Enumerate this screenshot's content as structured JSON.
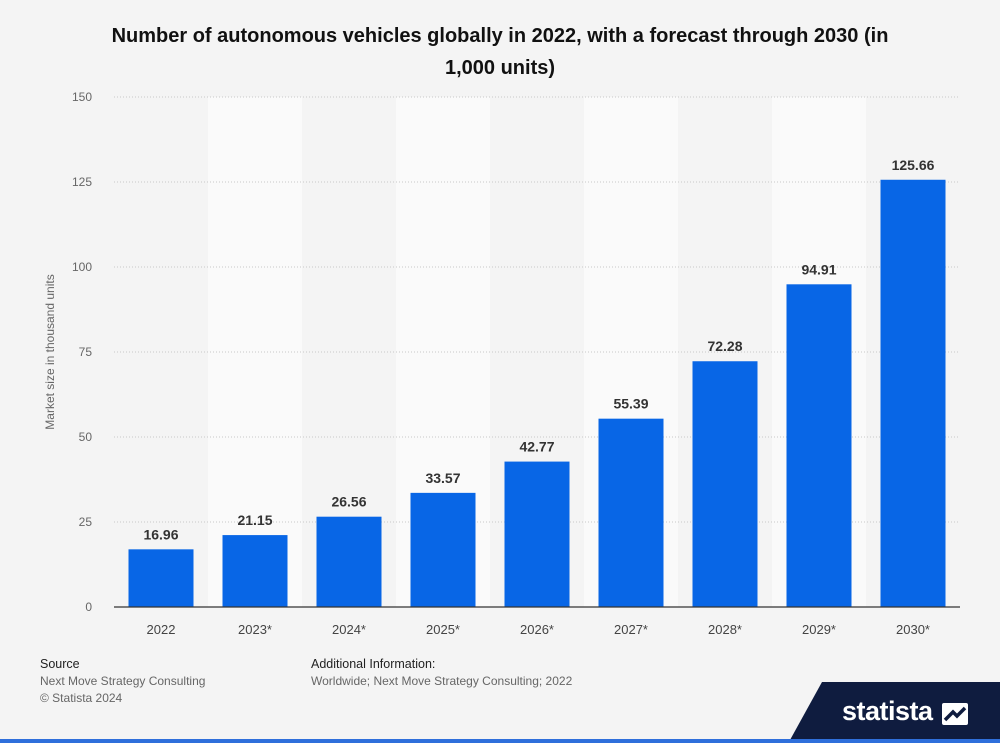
{
  "title": "Number of autonomous vehicles globally in 2022, with a forecast through 2030 (in 1,000 units)",
  "chart_data": {
    "type": "bar",
    "categories": [
      "2022",
      "2023*",
      "2024*",
      "2025*",
      "2026*",
      "2027*",
      "2028*",
      "2029*",
      "2030*"
    ],
    "values": [
      16.96,
      21.15,
      26.56,
      33.57,
      42.77,
      55.39,
      72.28,
      94.91,
      125.66
    ],
    "value_labels": [
      "16.96",
      "21.15",
      "26.56",
      "33.57",
      "42.77",
      "55.39",
      "72.28",
      "94.91",
      "125.66"
    ],
    "ylabel": "Market size in thousand units",
    "ylim": [
      0,
      150
    ],
    "yticks": [
      0,
      25,
      50,
      75,
      100,
      125,
      150
    ],
    "grid": true,
    "bar_color": "#0866e6"
  },
  "footer": {
    "source_heading": "Source",
    "source_lines": [
      "Next Move Strategy Consulting",
      "© Statista 2024"
    ],
    "info_heading": "Additional Information:",
    "info_text": "Worldwide; Next Move Strategy Consulting; 2022"
  },
  "brand": {
    "name": "statista"
  }
}
